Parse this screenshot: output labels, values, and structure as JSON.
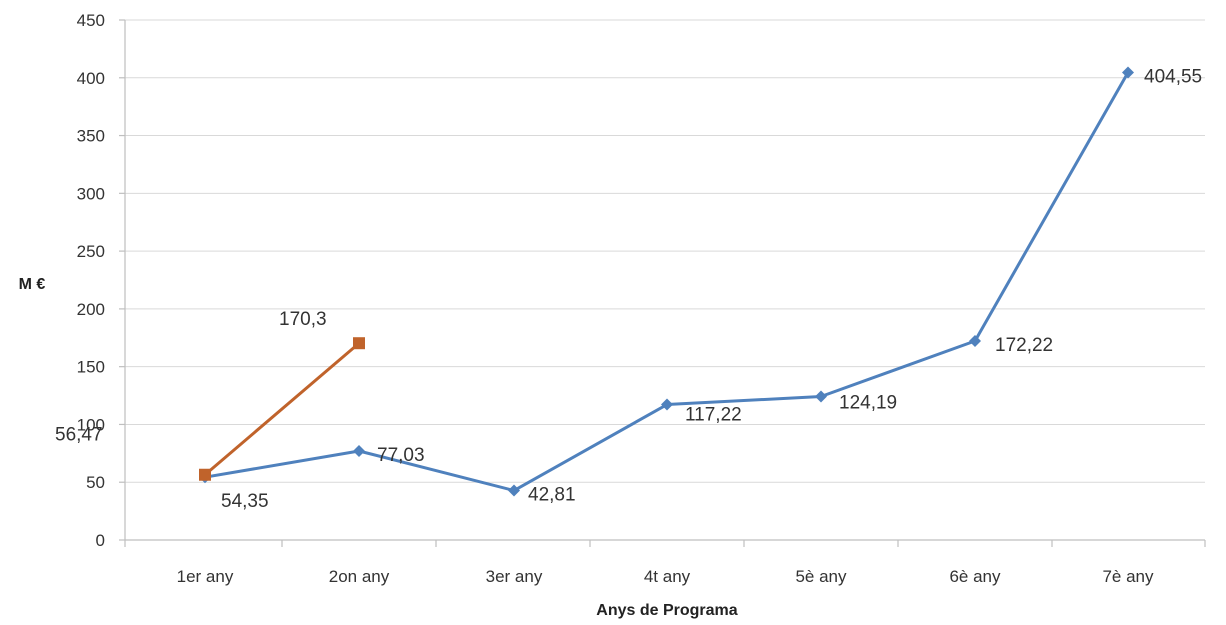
{
  "chart_data": {
    "type": "line",
    "title": "",
    "xlabel": "Anys de Programa",
    "ylabel": "M €",
    "categories": [
      "1er any",
      "2on any",
      "3er any",
      "4t any",
      "5è any",
      "6è any",
      "7è any"
    ],
    "ylim": [
      0,
      450
    ],
    "yticks": [
      0,
      50,
      100,
      150,
      200,
      250,
      300,
      350,
      400,
      450
    ],
    "grid": true,
    "legend": "none",
    "series": [
      {
        "color": "#4f81bd",
        "marker": "diamond",
        "values": [
          54.35,
          77.03,
          42.81,
          117.22,
          124.19,
          172.22,
          404.55
        ],
        "labels": [
          "54,35",
          "77,03",
          "42,81",
          "117,22",
          "124,19",
          "172,22",
          "404,55"
        ]
      },
      {
        "color": "#c0632b",
        "marker": "square",
        "values": [
          56.47,
          170.3,
          null,
          null,
          null,
          null,
          null
        ],
        "labels": [
          "56,47",
          "170,3",
          "",
          "",
          "",
          "",
          ""
        ]
      }
    ]
  }
}
